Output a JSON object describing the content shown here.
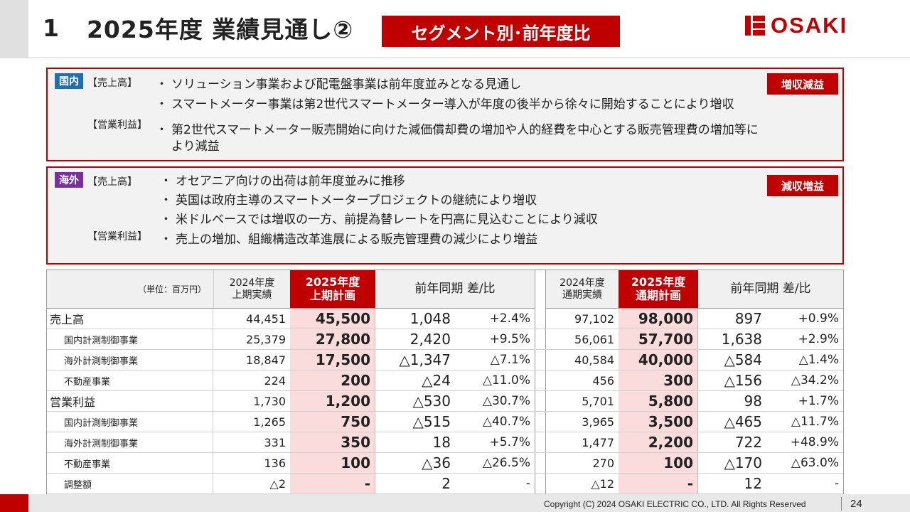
{
  "header": {
    "number": "1",
    "title": "2025年度 業績見通し②",
    "tag": "セグメント別･前年度比",
    "logo": "OSAKI"
  },
  "domestic": {
    "region": "国内",
    "badge": "増収減益",
    "sales_label": "【売上高】",
    "sales_items": [
      "ソリューション事業および配電盤事業は前年度並みとなる見通し",
      "スマートメーター事業は第2世代スマートメーター導入が年度の後半から徐々に開始することにより増収"
    ],
    "profit_label": "【営業利益】",
    "profit_items": [
      "第2世代スマートメーター販売開始に向けた減価償却費の増加や人的経費を中心とする販売管理費の増加等に",
      "より減益"
    ]
  },
  "overseas": {
    "region": "海外",
    "badge": "減収増益",
    "sales_label": "【売上高】",
    "sales_items": [
      "オセアニア向けの出荷は前年度並みに推移",
      "英国は政府主導のスマートメータープロジェクトの継続により増収",
      "米ドルベースでは増収の一方、前提為替レートを円高に見込むことにより減収"
    ],
    "profit_label": "【営業利益】",
    "profit_items": [
      "売上の増加、組織構造改革進展による販売管理費の減少により増益"
    ]
  },
  "bullet": "・",
  "table": {
    "unit": "（単位：百万円）",
    "headers": {
      "h1a": "2024年度",
      "h1b": "上期実績",
      "h2a": "2025年度",
      "h2b": "上期計画",
      "h3": "前年同期 差/比",
      "h4a": "2024年度",
      "h4b": "通期実績",
      "h5a": "2025年度",
      "h5b": "通期計画",
      "h6": "前年同期 差/比"
    },
    "rows": [
      {
        "label": "売上高",
        "main": true,
        "v": [
          "44,451",
          "45,500",
          "1,048",
          "+2.4%",
          "97,102",
          "98,000",
          "897",
          "+0.9%"
        ]
      },
      {
        "label": "国内計測制御事業",
        "main": false,
        "v": [
          "25,379",
          "27,800",
          "2,420",
          "+9.5%",
          "56,061",
          "57,700",
          "1,638",
          "+2.9%"
        ]
      },
      {
        "label": "海外計測制御事業",
        "main": false,
        "v": [
          "18,847",
          "17,500",
          "△1,347",
          "△7.1%",
          "40,584",
          "40,000",
          "△584",
          "△1.4%"
        ]
      },
      {
        "label": "不動産事業",
        "main": false,
        "v": [
          "224",
          "200",
          "△24",
          "△11.0%",
          "456",
          "300",
          "△156",
          "△34.2%"
        ]
      },
      {
        "label": "営業利益",
        "main": true,
        "v": [
          "1,730",
          "1,200",
          "△530",
          "△30.7%",
          "5,701",
          "5,800",
          "98",
          "+1.7%"
        ]
      },
      {
        "label": "国内計測制御事業",
        "main": false,
        "v": [
          "1,265",
          "750",
          "△515",
          "△40.7%",
          "3,965",
          "3,500",
          "△465",
          "△11.7%"
        ]
      },
      {
        "label": "海外計測制御事業",
        "main": false,
        "v": [
          "331",
          "350",
          "18",
          "+5.7%",
          "1,477",
          "2,200",
          "722",
          "+48.9%"
        ]
      },
      {
        "label": "不動産事業",
        "main": false,
        "v": [
          "136",
          "100",
          "△36",
          "△26.5%",
          "270",
          "100",
          "△170",
          "△63.0%"
        ]
      },
      {
        "label": "調整額",
        "main": false,
        "v": [
          "△2",
          "-",
          "2",
          "-",
          "△12",
          "-",
          "12",
          "-"
        ]
      }
    ]
  },
  "footer": {
    "copyright": "Copyright (C) 2024 OSAKI ELECTRIC CO., LTD. All Rights Reserved",
    "page": "24"
  }
}
